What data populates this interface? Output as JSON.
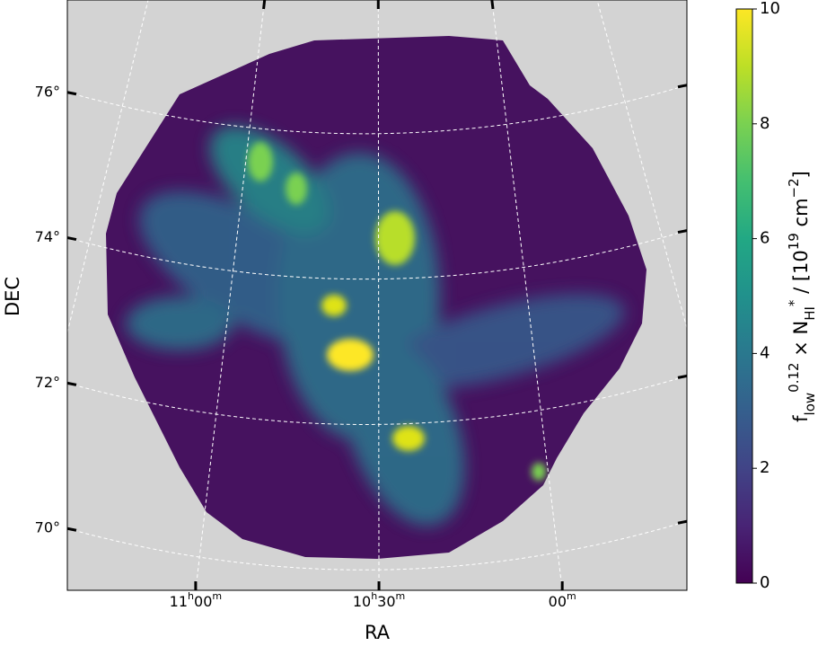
{
  "chart_data": {
    "type": "image",
    "xlabel": "RA",
    "ylabel": "DEC",
    "xlim": [
      11.35,
      9.66
    ],
    "ylim": [
      69.15,
      77.27
    ],
    "xticks": [
      {
        "value": 11.0,
        "label": "11h00m"
      },
      {
        "value": 10.5,
        "label": "10h30m"
      },
      {
        "value": 10.0,
        "label": "00m"
      }
    ],
    "yticks": [
      {
        "value": 76,
        "label": "76°"
      },
      {
        "value": 74,
        "label": "74°"
      },
      {
        "value": 72,
        "label": "72°"
      },
      {
        "value": 70,
        "label": "70°"
      }
    ],
    "grid": true,
    "colormap": "viridis",
    "clim": [
      0,
      10
    ],
    "cticks": [
      0,
      2,
      4,
      6,
      8,
      10
    ],
    "colorbar_label": "f_{low}^{0.12} × N_{HI}^{*} / [10^{19} cm^{−2}]"
  }
}
